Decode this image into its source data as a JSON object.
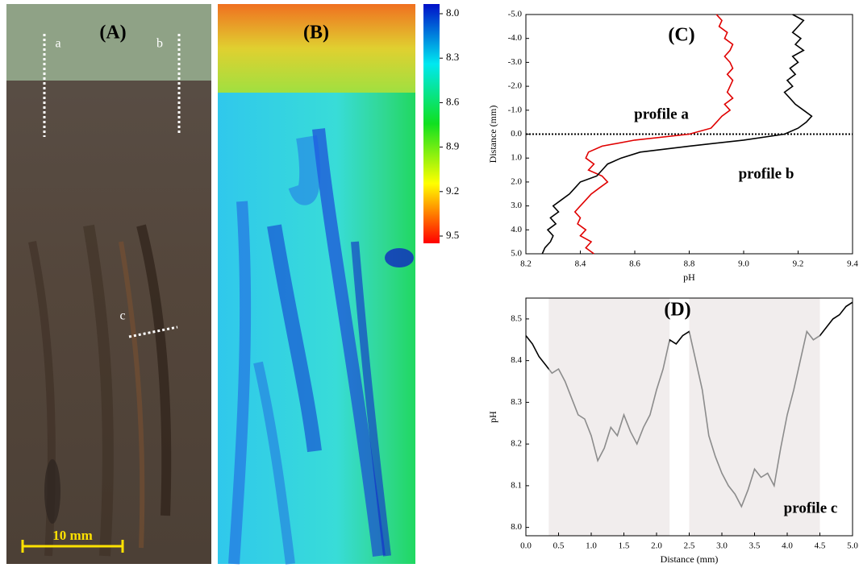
{
  "panel_a": {
    "label": "(A)",
    "profile_labels": [
      "a",
      "b",
      "c"
    ],
    "scale_bar": "10 mm"
  },
  "panel_b": {
    "label": "(B)",
    "colorbar_lim": [
      8.0,
      9.5
    ],
    "colorbar_colors": [
      "#0010c8",
      "#00e8f0",
      "#10e020",
      "#ffff00",
      "#ff0000"
    ],
    "colorbar_ticks": [
      {
        "value": 8,
        "label": "8.0"
      },
      8.3,
      8.6,
      8.9,
      9.2,
      9.5
    ]
  },
  "chart_data": [
    {
      "type": "line",
      "orientation": "vertical",
      "y_inverted": true,
      "title": "(C)",
      "xlabel": "pH",
      "ylabel": "Distance (mm)",
      "y": [
        -5,
        -4.75,
        -4.5,
        -4.25,
        -4,
        -3.75,
        -3.5,
        -3.25,
        -3,
        -2.75,
        -2.5,
        -2.25,
        -2,
        -1.75,
        -1.5,
        -1.25,
        -1,
        -0.75,
        -0.5,
        -0.25,
        0,
        0.25,
        0.5,
        0.75,
        1,
        1.25,
        1.5,
        1.75,
        2,
        2.25,
        2.5,
        2.75,
        3,
        3.25,
        3.5,
        3.75,
        4,
        4.25,
        4.5,
        4.75,
        5
      ],
      "series": [
        {
          "name": "profile a",
          "color": "#e00000",
          "values": [
            8.9,
            8.92,
            8.91,
            8.94,
            8.93,
            8.96,
            8.95,
            8.93,
            8.95,
            8.96,
            8.94,
            8.96,
            8.95,
            8.94,
            8.96,
            8.93,
            8.95,
            8.92,
            8.9,
            8.88,
            8.8,
            8.6,
            8.48,
            8.43,
            8.42,
            8.45,
            8.43,
            8.48,
            8.5,
            8.47,
            8.44,
            8.42,
            8.4,
            8.38,
            8.4,
            8.39,
            8.42,
            8.4,
            8.44,
            8.42,
            8.45
          ]
        },
        {
          "name": "profile b",
          "color": "#000000",
          "values": [
            9.18,
            9.22,
            9.2,
            9.18,
            9.21,
            9.19,
            9.22,
            9.18,
            9.2,
            9.17,
            9.19,
            9.16,
            9.18,
            9.15,
            9.17,
            9.19,
            9.22,
            9.25,
            9.23,
            9.2,
            9.15,
            9.0,
            8.8,
            8.62,
            8.55,
            8.5,
            8.48,
            8.46,
            8.4,
            8.38,
            8.36,
            8.33,
            8.3,
            8.32,
            8.29,
            8.31,
            8.28,
            8.3,
            8.29,
            8.27,
            8.26
          ]
        }
      ],
      "reference_line": 0,
      "xlim": [
        8.2,
        9.4
      ],
      "xticks": [
        8.2,
        8.4,
        8.6,
        8.8,
        {
          "value": 9,
          "label": "9.0"
        },
        9.2,
        9.4
      ],
      "ylim": [
        -5,
        5
      ],
      "yticks": [
        {
          "value": -5,
          "label": "-5.0"
        },
        {
          "value": -4,
          "label": "-4.0"
        },
        {
          "value": -3,
          "label": "-3.0"
        },
        {
          "value": -2,
          "label": "-2.0"
        },
        {
          "value": -1,
          "label": "-1.0"
        },
        {
          "value": 0,
          "label": "0.0"
        },
        {
          "value": 1,
          "label": "1.0"
        },
        {
          "value": 2,
          "label": "2.0"
        },
        {
          "value": 3,
          "label": "3.0"
        },
        {
          "value": 4,
          "label": "4.0"
        },
        {
          "value": 5,
          "label": "5.0"
        }
      ]
    },
    {
      "type": "line",
      "title": "(D)",
      "xlabel": "Distance (mm)",
      "ylabel": "pH",
      "x": [
        0,
        0.1,
        0.2,
        0.3,
        0.4,
        0.5,
        0.6,
        0.7,
        0.8,
        0.9,
        1,
        1.1,
        1.2,
        1.3,
        1.4,
        1.5,
        1.6,
        1.7,
        1.8,
        1.9,
        2,
        2.1,
        2.2,
        2.3,
        2.4,
        2.5,
        2.6,
        2.7,
        2.8,
        2.9,
        3,
        3.1,
        3.2,
        3.3,
        3.4,
        3.5,
        3.6,
        3.7,
        3.8,
        3.9,
        4,
        4.1,
        4.2,
        4.3,
        4.4,
        4.5,
        4.6,
        4.7,
        4.8,
        4.9,
        5
      ],
      "series": [
        {
          "name": "profile c",
          "color": "#000000",
          "values": [
            8.46,
            8.44,
            8.41,
            8.39,
            8.37,
            8.38,
            8.35,
            8.31,
            8.27,
            8.26,
            8.22,
            8.16,
            8.19,
            8.24,
            8.22,
            8.27,
            8.23,
            8.2,
            8.24,
            8.27,
            8.33,
            8.38,
            8.45,
            8.44,
            8.46,
            8.47,
            8.4,
            8.33,
            8.22,
            8.17,
            8.13,
            8.1,
            8.08,
            8.05,
            8.09,
            8.14,
            8.12,
            8.13,
            8.1,
            8.19,
            8.27,
            8.33,
            8.4,
            8.47,
            8.45,
            8.46,
            8.48,
            8.5,
            8.51,
            8.53,
            8.54
          ]
        }
      ],
      "shaded_ranges": [
        [
          0.35,
          2.2
        ],
        [
          2.5,
          4.5
        ]
      ],
      "shade_color": "#f1eded",
      "shade_line_color": "#8c8c8c",
      "xlim": [
        0,
        5
      ],
      "xticks": [
        {
          "value": 0,
          "label": "0.0"
        },
        0.5,
        {
          "value": 1,
          "label": "1.0"
        },
        1.5,
        {
          "value": 2,
          "label": "2.0"
        },
        2.5,
        {
          "value": 3,
          "label": "3.0"
        },
        3.5,
        {
          "value": 4,
          "label": "4.0"
        },
        4.5,
        {
          "value": 5,
          "label": "5.0"
        }
      ],
      "ylim": [
        7.98,
        8.55
      ],
      "yticks": [
        {
          "value": 8,
          "label": "8.0"
        },
        8.1,
        8.2,
        8.3,
        8.4,
        8.5
      ]
    }
  ]
}
